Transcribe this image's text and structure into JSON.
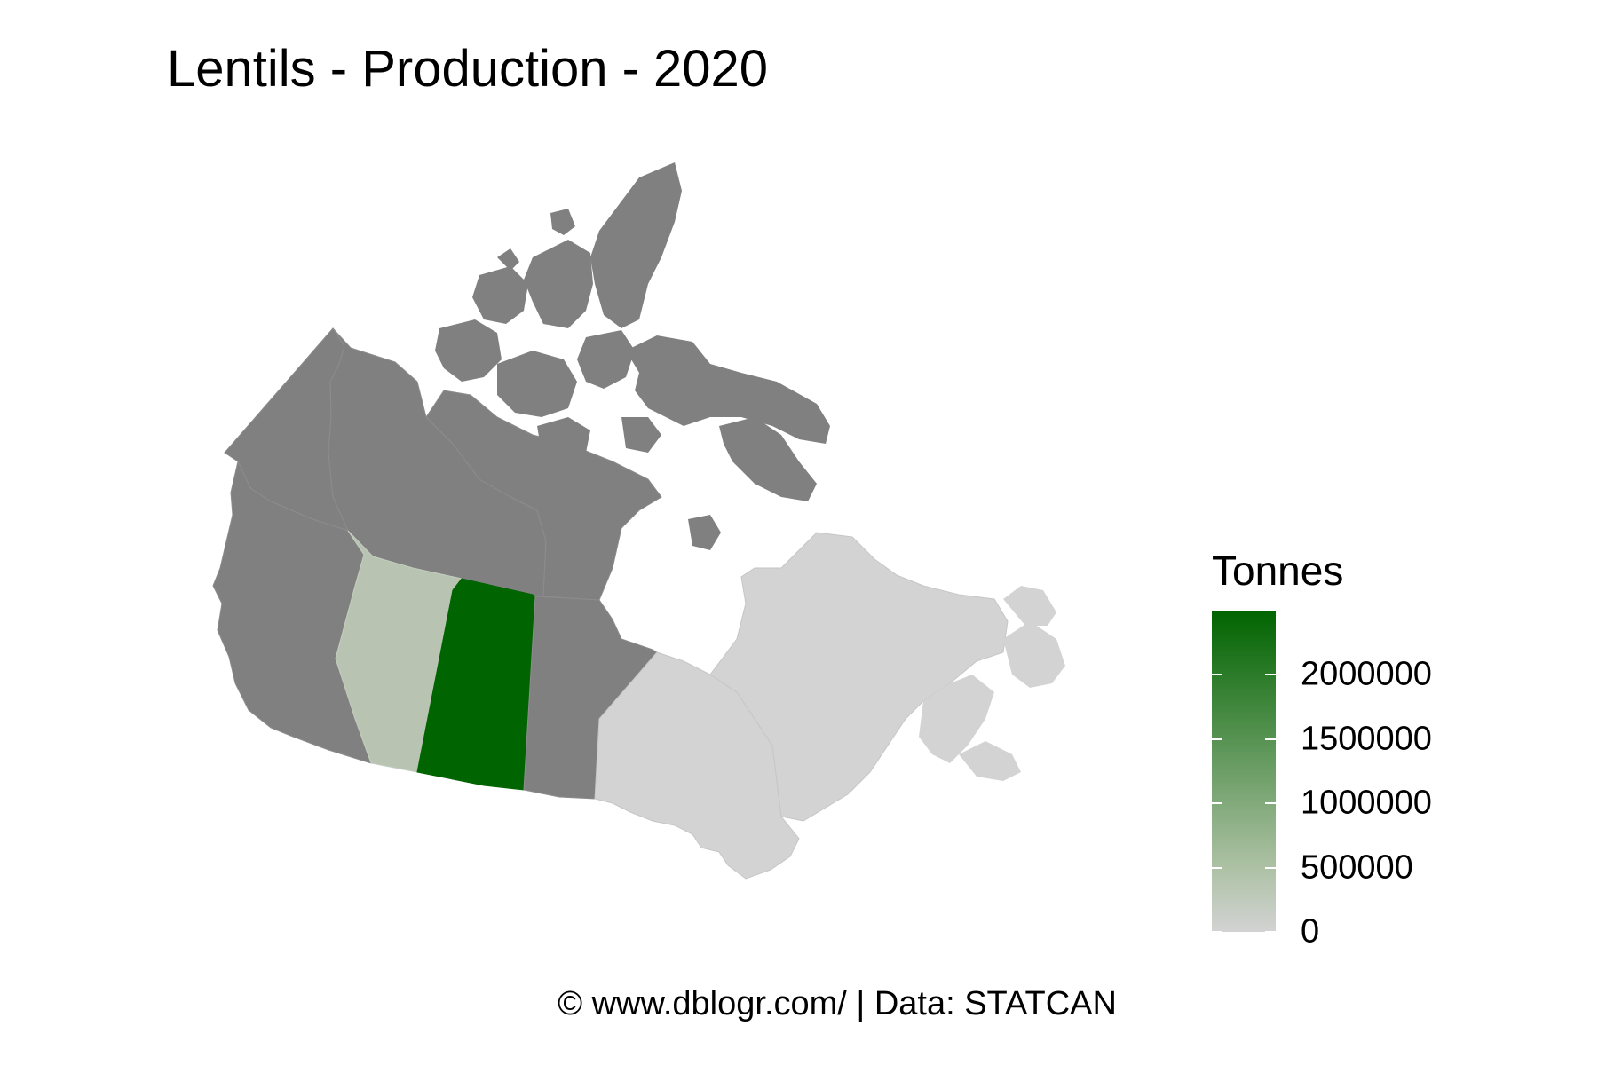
{
  "title": "Lentils - Production - 2020",
  "caption": "© www.dblogr.com/  |  Data: STATCAN",
  "legend": {
    "title": "Tonnes",
    "ticks": [
      "2000000",
      "1500000",
      "1000000",
      "500000",
      "0"
    ],
    "tick_values": [
      2000000,
      1500000,
      1000000,
      500000,
      0
    ],
    "max": 2500000,
    "color_low": "#d3d3d3",
    "color_high": "#006400"
  },
  "regions": [
    {
      "name": "Saskatchewan",
      "fill": "#006400",
      "level": "highest"
    },
    {
      "name": "Alberta",
      "fill": "#b8c4b1",
      "level": "low"
    },
    {
      "name": "Ontario",
      "fill": "#d3d3d3",
      "level": "zero"
    },
    {
      "name": "Quebec",
      "fill": "#d3d3d3",
      "level": "zero"
    },
    {
      "name": "Atlantic provinces",
      "fill": "#d3d3d3",
      "level": "zero"
    },
    {
      "name": "British Columbia",
      "fill": "#808080",
      "level": "no data"
    },
    {
      "name": "Manitoba",
      "fill": "#808080",
      "level": "no data"
    },
    {
      "name": "Yukon",
      "fill": "#808080",
      "level": "no data"
    },
    {
      "name": "Northwest Territories",
      "fill": "#808080",
      "level": "no data"
    },
    {
      "name": "Nunavut",
      "fill": "#808080",
      "level": "no data"
    }
  ]
}
